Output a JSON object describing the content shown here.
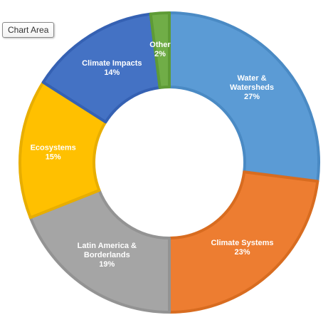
{
  "tooltip": {
    "chart_area_label": "Chart Area"
  },
  "chart_data": {
    "type": "pie",
    "variant": "doughnut",
    "title": "",
    "legend": "none",
    "categories": [
      "Water & Watersheds",
      "Climate Systems",
      "Latin America & Borderlands",
      "Ecosystems",
      "Climate Impacts",
      "Other"
    ],
    "values": [
      27,
      23,
      19,
      15,
      14,
      2
    ],
    "data_labels": [
      [
        "Water &",
        "Watersheds",
        "27%"
      ],
      [
        "Climate Systems",
        "23%"
      ],
      [
        "Latin America &",
        "Borderlands",
        "19%"
      ],
      [
        "Ecosystems",
        "15%"
      ],
      [
        "Climate Impacts",
        "14%"
      ],
      [
        "Other",
        "2%"
      ]
    ],
    "colors": [
      "#5b9bd5",
      "#ed7d31",
      "#a5a5a5",
      "#ffc000",
      "#4472c4",
      "#70ad47"
    ],
    "border_colors": [
      "#4a8ac4",
      "#d86c20",
      "#939393",
      "#e8ae00",
      "#3561b3",
      "#5e9b36"
    ]
  }
}
